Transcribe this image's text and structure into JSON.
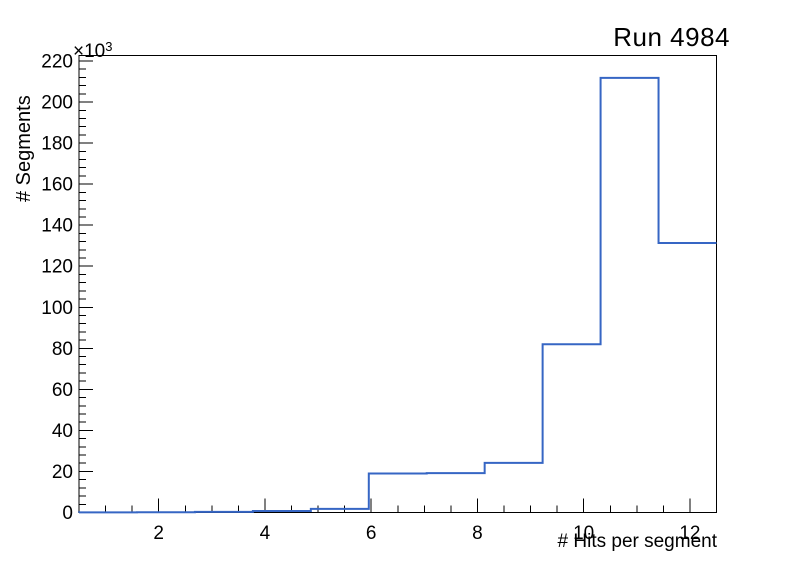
{
  "chart_data": {
    "type": "bar",
    "subtype": "step-histogram",
    "title": "Run 4984",
    "xlabel": "# Hits per segment",
    "ylabel": "# Segments",
    "y_axis_multiplier_base": "×10",
    "y_axis_multiplier_exponent": "3",
    "xlim": [
      0.5,
      12.5
    ],
    "ylim": [
      0,
      222700
    ],
    "grid": false,
    "legend": "none",
    "bin_edges": [
      0.5,
      1.591,
      2.682,
      3.773,
      4.864,
      5.955,
      7.045,
      8.136,
      9.227,
      10.318,
      11.409,
      12.5
    ],
    "counts": [
      50,
      120,
      300,
      730,
      1750,
      19000,
      19200,
      24200,
      82000,
      211800,
      131300
    ],
    "x_major_ticks": [
      2,
      4,
      6,
      8,
      10,
      12
    ],
    "x_tick_labels": [
      "2",
      "4",
      "6",
      "8",
      "10",
      "12"
    ],
    "x_minor_tick_step": 0.5,
    "y_major_ticks": [
      0,
      20000,
      40000,
      60000,
      80000,
      100000,
      120000,
      140000,
      160000,
      180000,
      200000,
      220000
    ],
    "y_tick_labels": [
      "0",
      "20",
      "40",
      "60",
      "80",
      "100",
      "120",
      "140",
      "160",
      "180",
      "200",
      "220"
    ],
    "y_minor_tick_step": 4000,
    "line_color": "#3666c4",
    "frame_color": "#000000",
    "background_color": "#ffffff"
  }
}
